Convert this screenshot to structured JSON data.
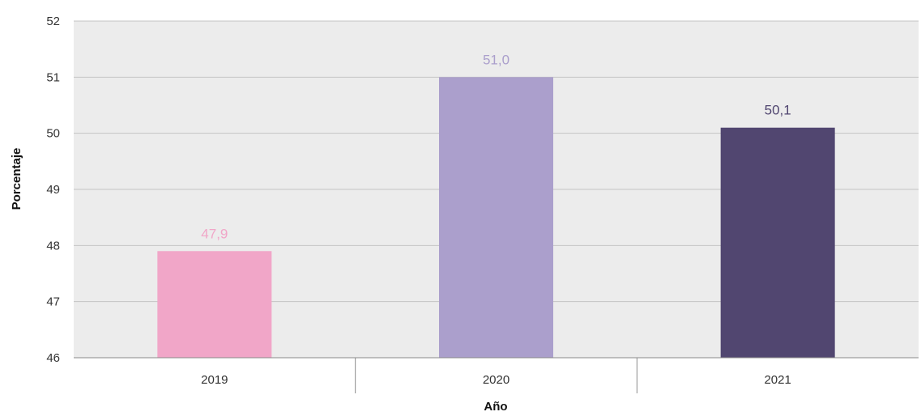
{
  "chart_data": {
    "type": "bar",
    "categories": [
      "2019",
      "2020",
      "2021"
    ],
    "values": [
      47.9,
      51.0,
      50.1
    ],
    "data_labels": [
      "47,9",
      "51,0",
      "50,1"
    ],
    "bar_colors": [
      "#f1a6c8",
      "#ab9fcc",
      "#514670"
    ],
    "label_colors": [
      "#f1a6c8",
      "#ab9fcc",
      "#514670"
    ],
    "title": "",
    "xlabel": "Año",
    "ylabel": "Porcentaje",
    "ylim": [
      46,
      52
    ],
    "yticks": [
      "46",
      "47",
      "48",
      "49",
      "50",
      "51",
      "52"
    ],
    "grid": true,
    "plot_background": "#ececec",
    "grid_color": "#c4c4c4",
    "legend": "none"
  }
}
